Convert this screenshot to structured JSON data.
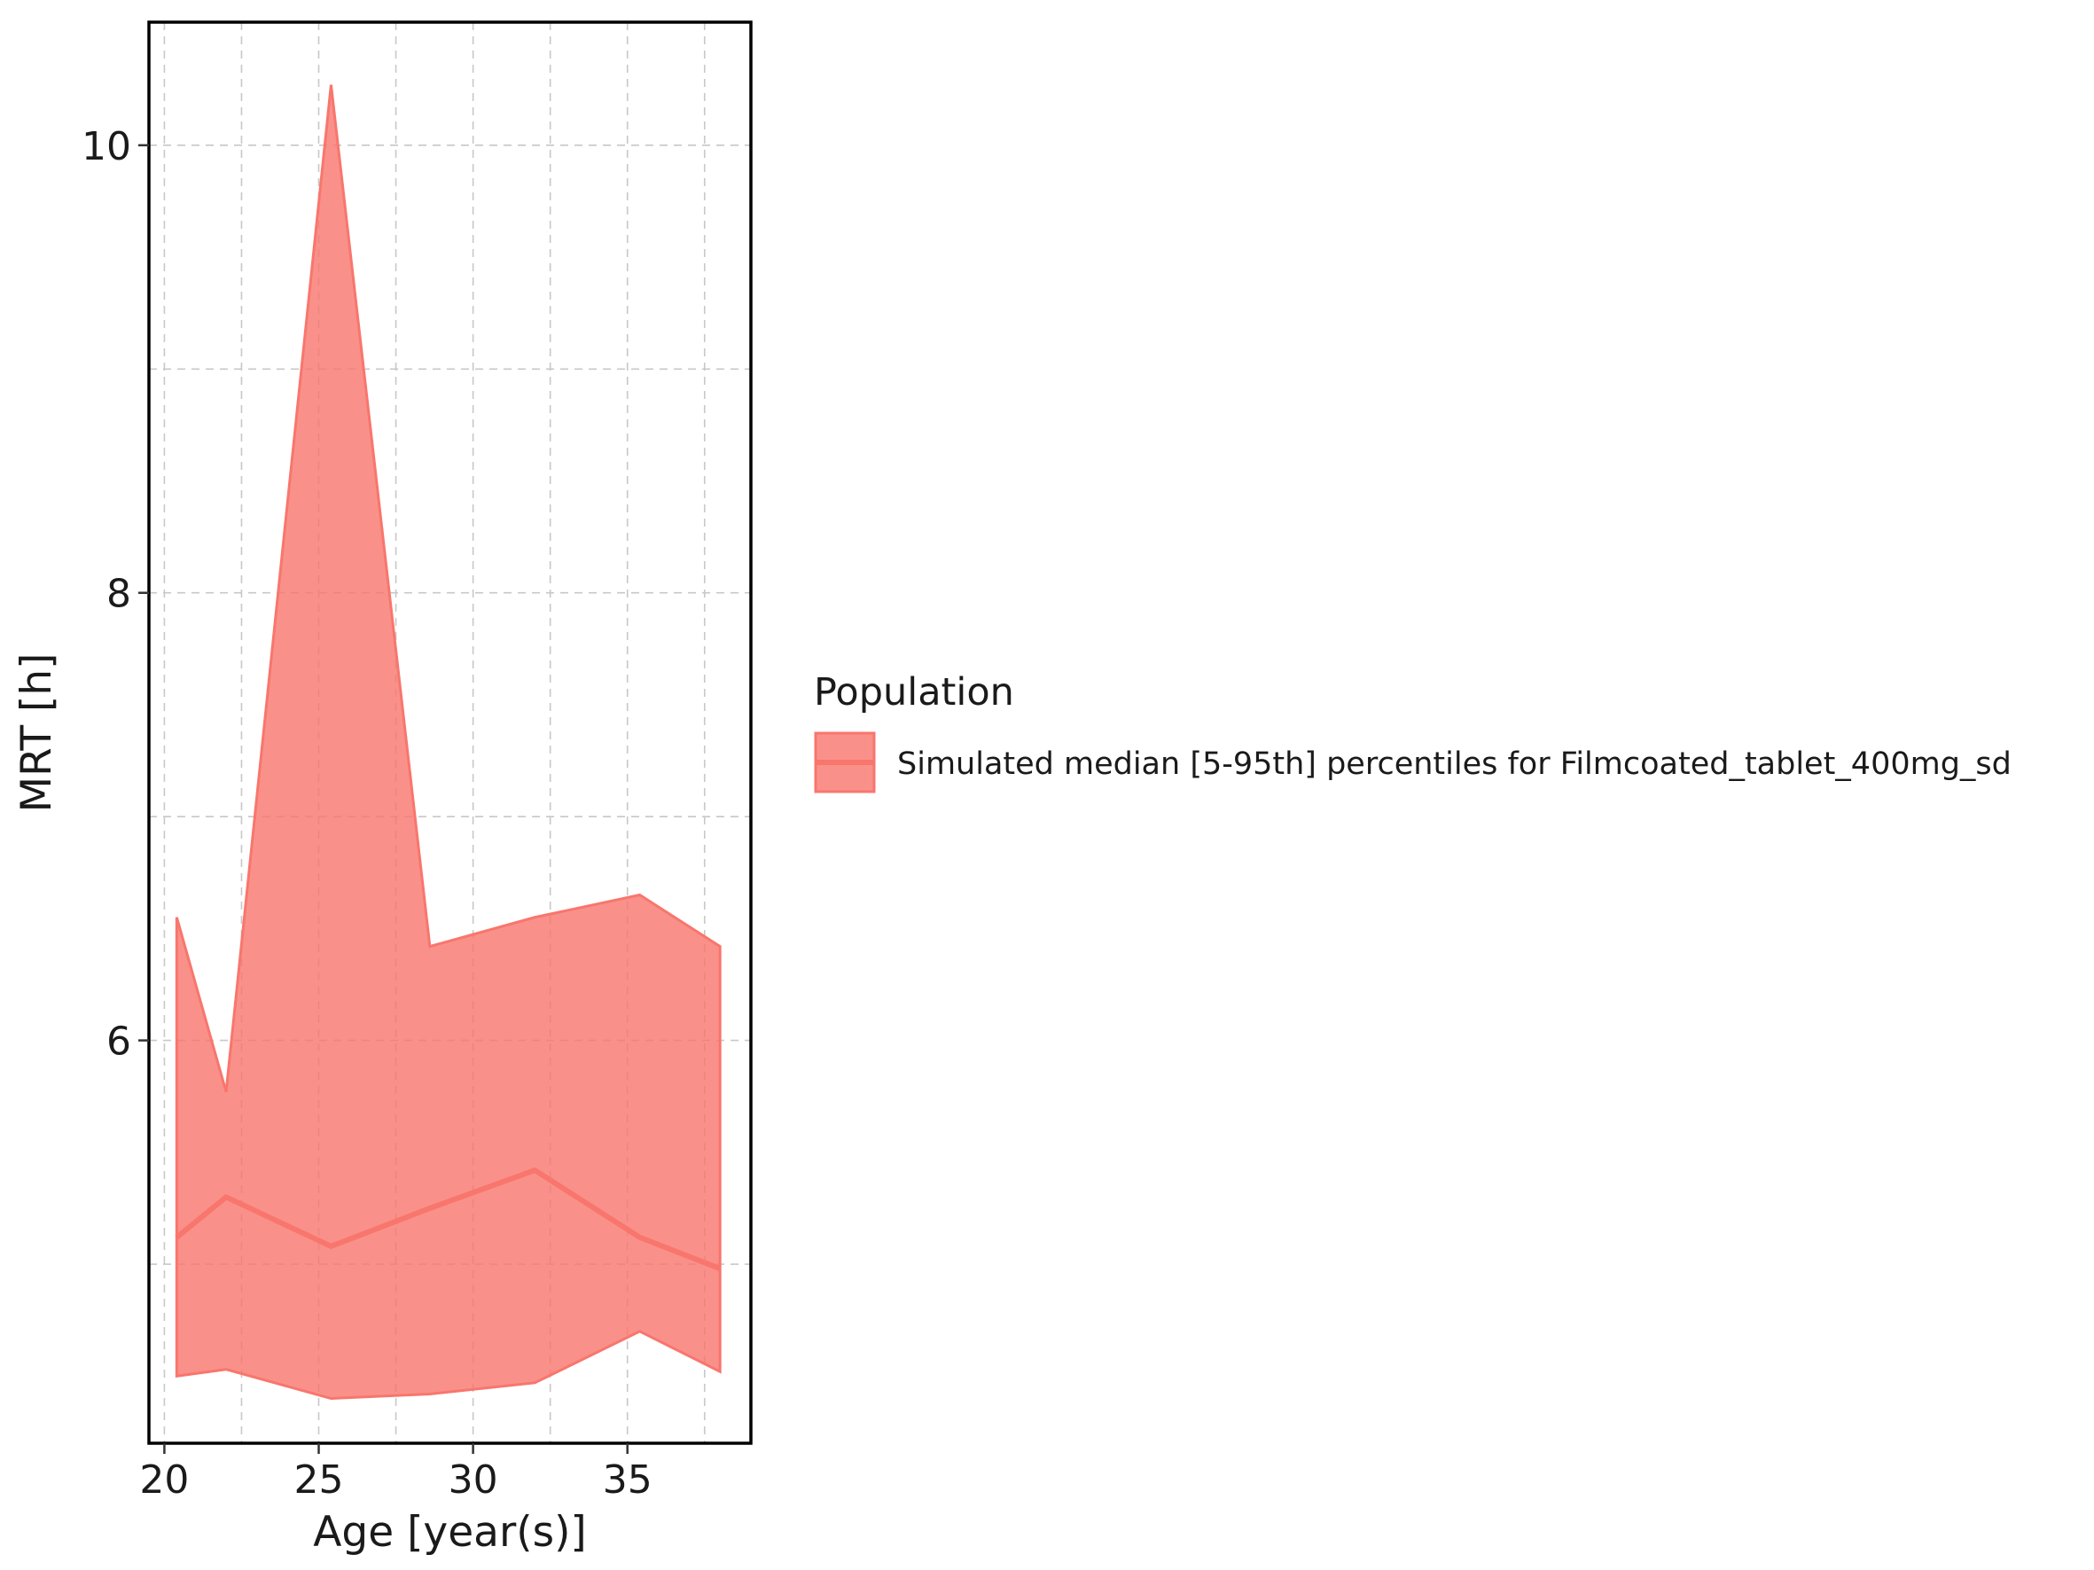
{
  "chart_data": {
    "type": "area",
    "xlabel": "Age [year(s)]",
    "ylabel": "MRT [h]",
    "xlim": [
      19.5,
      39
    ],
    "ylim": [
      4.2,
      10.55
    ],
    "x_ticks": [
      20,
      25,
      30,
      35
    ],
    "x_tick_labels": [
      "20",
      "25",
      "30",
      "35"
    ],
    "x_minor_gridlines": [
      22.5,
      27.5,
      32.5,
      37.5
    ],
    "y_ticks": [
      6,
      8,
      10
    ],
    "y_tick_labels": [
      "6",
      "8",
      "10"
    ],
    "y_minor_gridlines": [
      5,
      7,
      9
    ],
    "grid": true,
    "legend": {
      "title": "Population",
      "placement": "right",
      "entries": [
        "Simulated median [5-95th] percentiles for Filmcoated_tablet_400mg_sd"
      ]
    },
    "series": [
      {
        "name": "Simulated median [5-95th] percentiles for Filmcoated_tablet_400mg_sd",
        "color": "#F8766D",
        "x": [
          20.4,
          22.0,
          25.4,
          28.6,
          32.0,
          35.4,
          38.0
        ],
        "median": [
          5.12,
          5.3,
          5.08,
          5.25,
          5.42,
          5.12,
          4.98
        ],
        "p5": [
          4.5,
          4.53,
          4.4,
          4.42,
          4.47,
          4.7,
          4.52
        ],
        "p95": [
          6.55,
          5.77,
          10.27,
          6.42,
          6.55,
          6.65,
          6.42
        ]
      }
    ]
  }
}
